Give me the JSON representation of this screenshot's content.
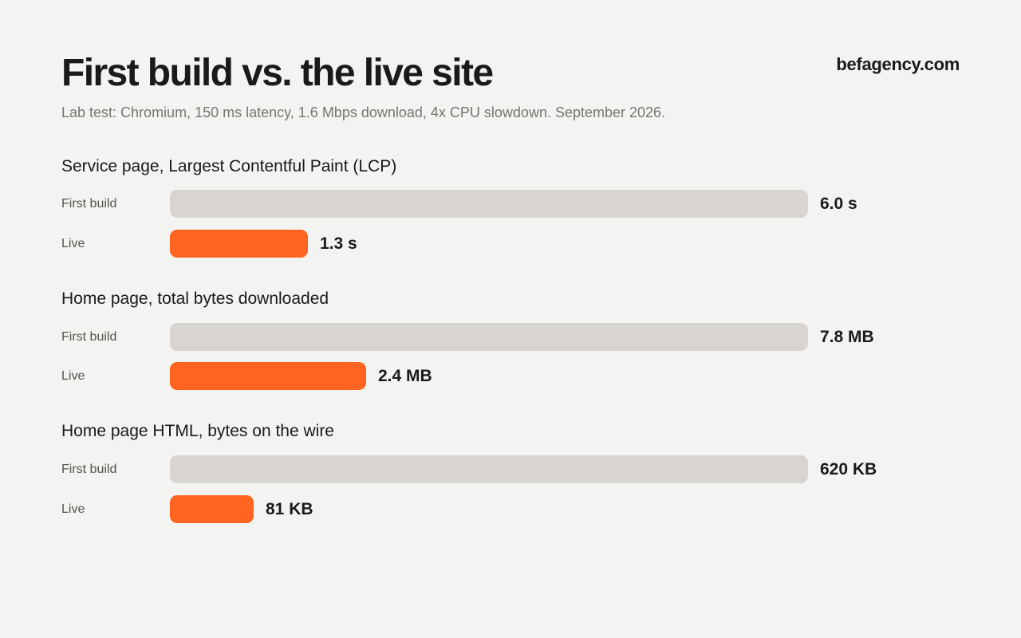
{
  "header": {
    "title": "First build vs. the live site",
    "subtitle": "Lab test: Chromium, 150 ms latency, 1.6 Mbps download, 4x CPU slowdown. September 2026.",
    "brand": "befagency.com"
  },
  "colors": {
    "first_build": "#d8d4d0",
    "live": "#ff6420",
    "background": "#f3f3f1"
  },
  "chart_data": [
    {
      "type": "bar",
      "orientation": "horizontal",
      "title": "Service page, Largest Contentful Paint (LCP)",
      "unit": "s",
      "categories": [
        "First build",
        "Live"
      ],
      "values": [
        6.0,
        1.3
      ],
      "value_labels": [
        "6.0 s",
        "1.3 s"
      ]
    },
    {
      "type": "bar",
      "orientation": "horizontal",
      "title": "Home page, total bytes downloaded",
      "unit": "MB",
      "categories": [
        "First build",
        "Live"
      ],
      "values": [
        7.8,
        2.4
      ],
      "value_labels": [
        "7.8 MB",
        "2.4 MB"
      ]
    },
    {
      "type": "bar",
      "orientation": "horizontal",
      "title": "Home page HTML, bytes on the wire",
      "unit": "KB",
      "categories": [
        "First build",
        "Live"
      ],
      "values": [
        620,
        81
      ],
      "value_labels": [
        "620 KB",
        "81 KB"
      ]
    }
  ]
}
